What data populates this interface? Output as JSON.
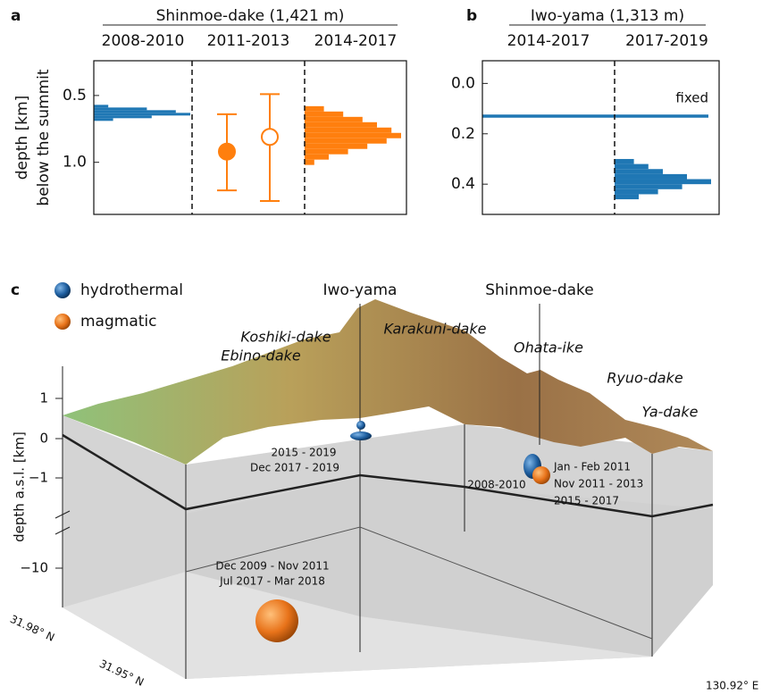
{
  "chart_data": [
    {
      "type": "histogram",
      "panel": "a",
      "title": "Shinmoe-dake (1,421 m)",
      "y_label": [
        "depth [km]",
        "below the summit"
      ],
      "categories": [
        "2008-2010",
        "2011-2013",
        "2014-2017"
      ],
      "ylim": [
        0.24,
        1.39
      ],
      "yticks": [
        0.5,
        {
          "value": 1,
          "label": "1.0"
        }
      ],
      "series": [
        {
          "category": 0,
          "color": "#1f77b4",
          "bins": [
            0.57,
            0.59,
            0.61,
            0.63,
            0.65,
            0.67,
            0.69
          ],
          "counts": [
            15,
            55,
            85,
            100,
            60,
            20
          ]
        },
        {
          "category": 2,
          "color": "#ff7f0e",
          "bins": [
            0.58,
            0.62,
            0.66,
            0.7,
            0.74,
            0.78,
            0.82,
            0.86,
            0.9,
            0.94,
            0.98,
            1.02
          ],
          "counts": [
            20,
            40,
            60,
            75,
            90,
            100,
            85,
            65,
            45,
            25,
            10
          ]
        }
      ],
      "points": {
        "category": 1,
        "color": "#ff7f0e",
        "values": [
          0.92,
          0.81
        ],
        "lower": [
          0.64,
          0.49
        ],
        "upper": [
          1.21,
          1.29
        ],
        "filled": [
          true,
          false
        ]
      }
    },
    {
      "type": "histogram",
      "panel": "b",
      "title": "Iwo-yama (1,313 m)",
      "categories": [
        "2014-2017",
        "2017-2019"
      ],
      "ylim": [
        -0.09,
        0.52
      ],
      "yticks": [
        {
          "value": 0,
          "label": "0.0"
        },
        0.2,
        0.4
      ],
      "series": [
        {
          "category": 1,
          "color": "#1f77b4",
          "bins": [
            0.3,
            0.32,
            0.34,
            0.36,
            0.38,
            0.4,
            0.42,
            0.44,
            0.46
          ],
          "counts": [
            20,
            35,
            50,
            75,
            100,
            70,
            45,
            25
          ]
        }
      ],
      "reference_line": {
        "value": 0.13,
        "label": "fixed",
        "color": "#1f77b4"
      }
    }
  ],
  "panel_c": {
    "panel": "c",
    "legend": [
      "hydrothermal",
      "magmatic"
    ],
    "axis_label": "depth a.s.l. [km]",
    "axis_ticks": [
      "1",
      "0",
      "−1",
      "−10"
    ],
    "peaks": [
      "Iwo-yama",
      "Shinmoe-dake",
      "Koshiki-dake",
      "Karakuni-dake",
      "Ebino-dake",
      "Ohata-ike",
      "Ryuo-dake",
      "Ya-dake"
    ],
    "iwo_periods": [
      "2015 - 2019",
      "Dec 2017 - 2019"
    ],
    "shinmoe_shallow_period": "2008-2010",
    "shinmoe_periods": [
      "Jan - Feb 2011",
      "Nov 2011 - 2013",
      "2015 - 2017"
    ],
    "deep_periods": [
      "Dec 2009 - Nov 2011",
      "Jul 2017 - Mar 2018"
    ],
    "coordinates": [
      "31.98° N",
      "31.95° N",
      "130.92° E"
    ]
  }
}
